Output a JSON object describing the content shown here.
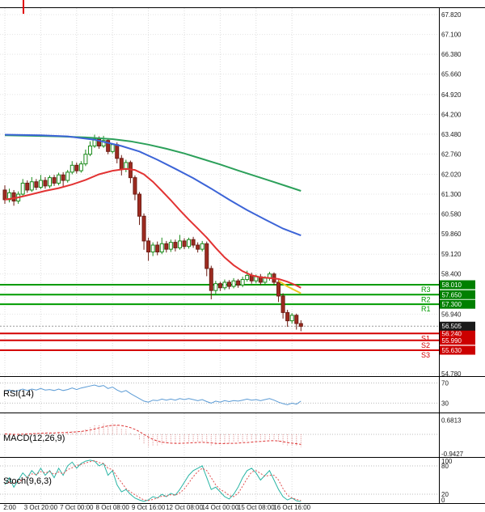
{
  "chart_data": [
    {
      "type": "candlestick",
      "panel": "price",
      "title": "",
      "price_axis": {
        "max": 68.06,
        "min": 54.69,
        "ticks": [
          "67.820",
          "67.100",
          "66.380",
          "65.660",
          "64.920",
          "64.200",
          "63.480",
          "62.760",
          "62.020",
          "61.300",
          "60.580",
          "59.860",
          "59.120",
          "58.400",
          "56.940",
          "54.780"
        ]
      },
      "time_axis": {
        "bars_per_label": 8,
        "labels": [
          "2:00",
          "3 Oct 20:00",
          "7 Oct 00:00",
          "8 Oct 08:00",
          "9 Oct 16:00",
          "12 Oct 08:00",
          "14 Oct 00:00",
          "15 Oct 08:00",
          "16 Oct 16:00"
        ]
      },
      "levels": {
        "resistance": [
          {
            "label": "R3",
            "price": "58.010"
          },
          {
            "label": "R2",
            "price": "57.650"
          },
          {
            "label": "R1",
            "price": "57.300"
          }
        ],
        "support": [
          {
            "label": "S1",
            "price": "56.240"
          },
          {
            "label": "S2",
            "price": "55.990"
          },
          {
            "label": "S3",
            "price": "55.630"
          }
        ],
        "current": {
          "price": "56.505"
        }
      },
      "moving_averages": [
        {
          "name": "ma-slow-green",
          "color": "#2ca05a",
          "width": 2,
          "points": [
            [
              0,
              63.44
            ],
            [
              6,
              63.42
            ],
            [
              12,
              63.4
            ],
            [
              18,
              63.36
            ],
            [
              24,
              63.3
            ],
            [
              28,
              63.22
            ],
            [
              32,
              63.1
            ],
            [
              36,
              62.95
            ],
            [
              40,
              62.78
            ],
            [
              44,
              62.58
            ],
            [
              48,
              62.38
            ],
            [
              52,
              62.16
            ],
            [
              56,
              61.95
            ],
            [
              60,
              61.74
            ],
            [
              63,
              61.58
            ],
            [
              66,
              61.42
            ]
          ]
        },
        {
          "name": "ma-mid-blue",
          "color": "#3c64d7",
          "width": 2,
          "points": [
            [
              0,
              63.46
            ],
            [
              8,
              63.44
            ],
            [
              14,
              63.4
            ],
            [
              20,
              63.28
            ],
            [
              26,
              63.05
            ],
            [
              30,
              62.85
            ],
            [
              34,
              62.55
            ],
            [
              38,
              62.22
            ],
            [
              42,
              61.88
            ],
            [
              46,
              61.5
            ],
            [
              50,
              61.1
            ],
            [
              54,
              60.72
            ],
            [
              58,
              60.38
            ],
            [
              62,
              60.05
            ],
            [
              66,
              59.8
            ]
          ]
        },
        {
          "name": "ma-fast-red",
          "color": "#e23333",
          "width": 2,
          "points": [
            [
              0,
              61.1
            ],
            [
              3,
              61.18
            ],
            [
              6,
              61.3
            ],
            [
              9,
              61.42
            ],
            [
              12,
              61.52
            ],
            [
              15,
              61.65
            ],
            [
              18,
              61.82
            ],
            [
              21,
              62.02
            ],
            [
              24,
              62.15
            ],
            [
              27,
              62.22
            ],
            [
              29,
              62.18
            ],
            [
              31,
              62.02
            ],
            [
              33,
              61.75
            ],
            [
              35,
              61.42
            ],
            [
              37,
              61.08
            ],
            [
              39,
              60.72
            ],
            [
              41,
              60.38
            ],
            [
              43,
              60.05
            ],
            [
              45,
              59.72
            ],
            [
              47,
              59.35
            ],
            [
              49,
              59.0
            ],
            [
              51,
              58.72
            ],
            [
              53,
              58.5
            ],
            [
              55,
              58.35
            ],
            [
              57,
              58.28
            ],
            [
              59,
              58.25
            ],
            [
              61,
              58.22
            ],
            [
              63,
              58.12
            ],
            [
              65,
              57.98
            ],
            [
              66,
              57.9
            ]
          ]
        },
        {
          "name": "ma-tip-yellow",
          "color": "#edc41f",
          "width": 2,
          "points": [
            [
              61,
              58.15
            ],
            [
              63,
              57.95
            ],
            [
              66,
              57.7
            ]
          ]
        }
      ],
      "colors": {
        "up_fill": "#ffffff",
        "up_stroke": "#1a8a1a",
        "down_fill": "#9e2b20",
        "down_stroke": "#6d1d15",
        "resistance_line": "#009b00",
        "support_line": "#d40000",
        "badge_resistance": "#008000",
        "badge_support": "#cc0000",
        "badge_current": "#1a1a1a",
        "grid": "#dcdcdc",
        "separator": "#000000",
        "axis_text": "#1a1a1a",
        "current_line": "#999999",
        "period_marker": "#e00000"
      },
      "candles": [
        [
          61.45,
          61.62,
          60.95,
          61.1
        ],
        [
          61.1,
          61.5,
          61.0,
          61.35
        ],
        [
          61.35,
          61.45,
          60.88,
          61.05
        ],
        [
          61.05,
          61.4,
          60.95,
          61.3
        ],
        [
          61.3,
          61.85,
          61.2,
          61.7
        ],
        [
          61.7,
          61.8,
          61.35,
          61.45
        ],
        [
          61.45,
          61.92,
          61.38,
          61.75
        ],
        [
          61.75,
          61.85,
          61.45,
          61.55
        ],
        [
          61.55,
          62.0,
          61.48,
          61.8
        ],
        [
          61.8,
          61.92,
          61.5,
          61.6
        ],
        [
          61.6,
          61.98,
          61.52,
          61.9
        ],
        [
          61.9,
          62.0,
          61.6,
          61.7
        ],
        [
          61.7,
          62.08,
          61.62,
          62.0
        ],
        [
          62.0,
          62.1,
          61.58,
          61.8
        ],
        [
          61.8,
          62.18,
          61.72,
          62.1
        ],
        [
          62.1,
          62.5,
          62.02,
          62.35
        ],
        [
          62.35,
          62.45,
          62.05,
          62.15
        ],
        [
          62.15,
          62.5,
          62.08,
          62.4
        ],
        [
          62.4,
          62.92,
          62.32,
          62.75
        ],
        [
          62.75,
          63.22,
          62.68,
          63.05
        ],
        [
          63.05,
          63.46,
          62.98,
          63.3
        ],
        [
          63.3,
          63.4,
          62.95,
          63.05
        ],
        [
          63.05,
          63.42,
          62.98,
          63.25
        ],
        [
          63.25,
          63.32,
          62.75,
          62.85
        ],
        [
          62.85,
          63.15,
          62.78,
          63.1
        ],
        [
          63.1,
          63.18,
          62.42,
          62.6
        ],
        [
          62.6,
          62.72,
          61.98,
          62.2
        ],
        [
          62.2,
          62.55,
          62.1,
          62.45
        ],
        [
          62.45,
          62.52,
          61.7,
          61.9
        ],
        [
          61.9,
          61.98,
          61.08,
          61.3
        ],
        [
          61.3,
          61.38,
          60.18,
          60.5
        ],
        [
          60.5,
          60.6,
          59.28,
          59.6
        ],
        [
          59.6,
          59.72,
          58.88,
          59.2
        ],
        [
          59.2,
          59.55,
          59.05,
          59.45
        ],
        [
          59.45,
          59.58,
          59.08,
          59.2
        ],
        [
          59.2,
          59.72,
          59.12,
          59.5
        ],
        [
          59.5,
          59.6,
          59.18,
          59.3
        ],
        [
          59.3,
          59.65,
          59.2,
          59.55
        ],
        [
          59.55,
          59.65,
          59.22,
          59.35
        ],
        [
          59.35,
          59.82,
          59.28,
          59.6
        ],
        [
          59.6,
          59.7,
          59.3,
          59.4
        ],
        [
          59.4,
          59.72,
          59.32,
          59.65
        ],
        [
          59.65,
          59.75,
          59.35,
          59.45
        ],
        [
          59.45,
          59.55,
          59.18,
          59.3
        ],
        [
          59.3,
          59.6,
          59.22,
          59.5
        ],
        [
          59.5,
          59.58,
          58.32,
          58.6
        ],
        [
          58.6,
          58.7,
          57.48,
          57.8
        ],
        [
          57.8,
          58.15,
          57.65,
          58.05
        ],
        [
          58.05,
          58.12,
          57.78,
          57.9
        ],
        [
          57.9,
          58.2,
          57.82,
          58.1
        ],
        [
          58.1,
          58.18,
          57.85,
          57.95
        ],
        [
          57.95,
          58.25,
          57.88,
          58.15
        ],
        [
          58.15,
          58.22,
          57.9,
          58.0
        ],
        [
          58.0,
          58.3,
          57.92,
          58.2
        ],
        [
          58.2,
          58.52,
          58.12,
          58.35
        ],
        [
          58.35,
          58.45,
          58.05,
          58.15
        ],
        [
          58.15,
          58.38,
          58.06,
          58.3
        ],
        [
          58.3,
          58.4,
          58.0,
          58.1
        ],
        [
          58.1,
          58.32,
          58.02,
          58.25
        ],
        [
          58.25,
          58.48,
          58.16,
          58.4
        ],
        [
          58.4,
          58.46,
          58.0,
          58.1
        ],
        [
          58.1,
          58.18,
          57.38,
          57.6
        ],
        [
          57.6,
          57.7,
          56.78,
          57.0
        ],
        [
          57.0,
          57.1,
          56.48,
          56.7
        ],
        [
          56.7,
          56.98,
          56.6,
          56.9
        ],
        [
          56.9,
          56.96,
          56.38,
          56.6
        ],
        [
          56.6,
          56.72,
          56.32,
          56.5
        ]
      ]
    },
    {
      "type": "line",
      "panel": "rsi",
      "title": "RSI(14)",
      "color": "#5b9bd5",
      "range": {
        "max": 82,
        "min": 13
      },
      "level_lines": [
        70,
        30
      ],
      "ticks": [
        "70",
        "30"
      ],
      "tick_values": [
        70,
        30
      ],
      "values": [
        54,
        56,
        53,
        55,
        58,
        55,
        58,
        56,
        59,
        56,
        57,
        55,
        58,
        55,
        57,
        60,
        57,
        60,
        62,
        64,
        66,
        63,
        65,
        59,
        62,
        56,
        52,
        55,
        49,
        44,
        39,
        34,
        32,
        36,
        35,
        38,
        36,
        38,
        36,
        39,
        37,
        39,
        37,
        35,
        37,
        33,
        30,
        34,
        32,
        35,
        33,
        35,
        34,
        36,
        38,
        36,
        37,
        35,
        37,
        39,
        36,
        32,
        29,
        27,
        30,
        28,
        34
      ]
    },
    {
      "type": "bar+line",
      "panel": "macd",
      "title": "MACD(12,26,9)",
      "hist_color": "#d98080",
      "signal_color": "#dd3333",
      "range": {
        "max": 1.005,
        "min": -1.044
      },
      "ticks": [
        "0.6813",
        "-0.9427"
      ],
      "tick_values": [
        0.6813,
        -0.9427
      ],
      "histogram": [
        0.02,
        0.0,
        -0.03,
        -0.02,
        0.03,
        0.05,
        0.07,
        0.06,
        0.09,
        0.07,
        0.09,
        0.08,
        0.11,
        0.09,
        0.13,
        0.17,
        0.16,
        0.19,
        0.25,
        0.33,
        0.43,
        0.46,
        0.51,
        0.48,
        0.5,
        0.42,
        0.3,
        0.22,
        0.1,
        -0.08,
        -0.28,
        -0.48,
        -0.6,
        -0.55,
        -0.54,
        -0.5,
        -0.47,
        -0.45,
        -0.43,
        -0.4,
        -0.38,
        -0.36,
        -0.35,
        -0.36,
        -0.34,
        -0.42,
        -0.52,
        -0.5,
        -0.48,
        -0.44,
        -0.41,
        -0.39,
        -0.37,
        -0.34,
        -0.31,
        -0.29,
        -0.27,
        -0.27,
        -0.25,
        -0.23,
        -0.28,
        -0.38,
        -0.5,
        -0.58,
        -0.55,
        -0.56,
        -0.6
      ],
      "signal": [
        0.02,
        0.01,
        0.0,
        0.0,
        0.01,
        0.02,
        0.03,
        0.04,
        0.05,
        0.06,
        0.07,
        0.07,
        0.08,
        0.08,
        0.09,
        0.11,
        0.12,
        0.14,
        0.17,
        0.21,
        0.26,
        0.31,
        0.36,
        0.4,
        0.43,
        0.44,
        0.42,
        0.38,
        0.32,
        0.24,
        0.13,
        0.0,
        -0.13,
        -0.24,
        -0.32,
        -0.37,
        -0.4,
        -0.42,
        -0.43,
        -0.43,
        -0.42,
        -0.41,
        -0.4,
        -0.39,
        -0.38,
        -0.39,
        -0.41,
        -0.43,
        -0.44,
        -0.44,
        -0.43,
        -0.43,
        -0.42,
        -0.4,
        -0.39,
        -0.37,
        -0.35,
        -0.34,
        -0.32,
        -0.31,
        -0.3,
        -0.32,
        -0.35,
        -0.39,
        -0.42,
        -0.45,
        -0.48
      ]
    },
    {
      "type": "line",
      "panel": "stoch",
      "title": "Stoch(9,6,3)",
      "k_color": "#2ab5a5",
      "d_color": "#e05050",
      "range": {
        "max": 97,
        "min": 3
      },
      "level_lines": [
        80,
        20
      ],
      "ticks": [
        "100",
        "80",
        "20",
        "0"
      ],
      "tick_values": [
        100,
        80,
        20,
        0
      ],
      "k": [
        40,
        55,
        35,
        50,
        65,
        55,
        70,
        60,
        75,
        60,
        70,
        55,
        75,
        60,
        80,
        88,
        75,
        85,
        90,
        92,
        90,
        80,
        85,
        60,
        70,
        40,
        25,
        30,
        20,
        12,
        8,
        5,
        8,
        15,
        12,
        20,
        15,
        22,
        18,
        30,
        45,
        60,
        70,
        75,
        80,
        55,
        30,
        35,
        25,
        15,
        10,
        20,
        35,
        55,
        70,
        75,
        65,
        50,
        60,
        70,
        50,
        30,
        15,
        8,
        12,
        6,
        4
      ],
      "d": [
        43,
        45,
        43,
        47,
        50,
        57,
        63,
        62,
        68,
        65,
        68,
        62,
        67,
        63,
        72,
        76,
        81,
        83,
        86,
        89,
        91,
        87,
        85,
        75,
        72,
        57,
        45,
        32,
        25,
        19,
        13,
        8,
        7,
        9,
        12,
        16,
        16,
        19,
        18,
        23,
        31,
        44,
        57,
        68,
        75,
        70,
        55,
        40,
        30,
        25,
        17,
        15,
        22,
        37,
        53,
        67,
        70,
        64,
        58,
        60,
        60,
        50,
        32,
        18,
        12,
        9,
        7
      ]
    }
  ]
}
